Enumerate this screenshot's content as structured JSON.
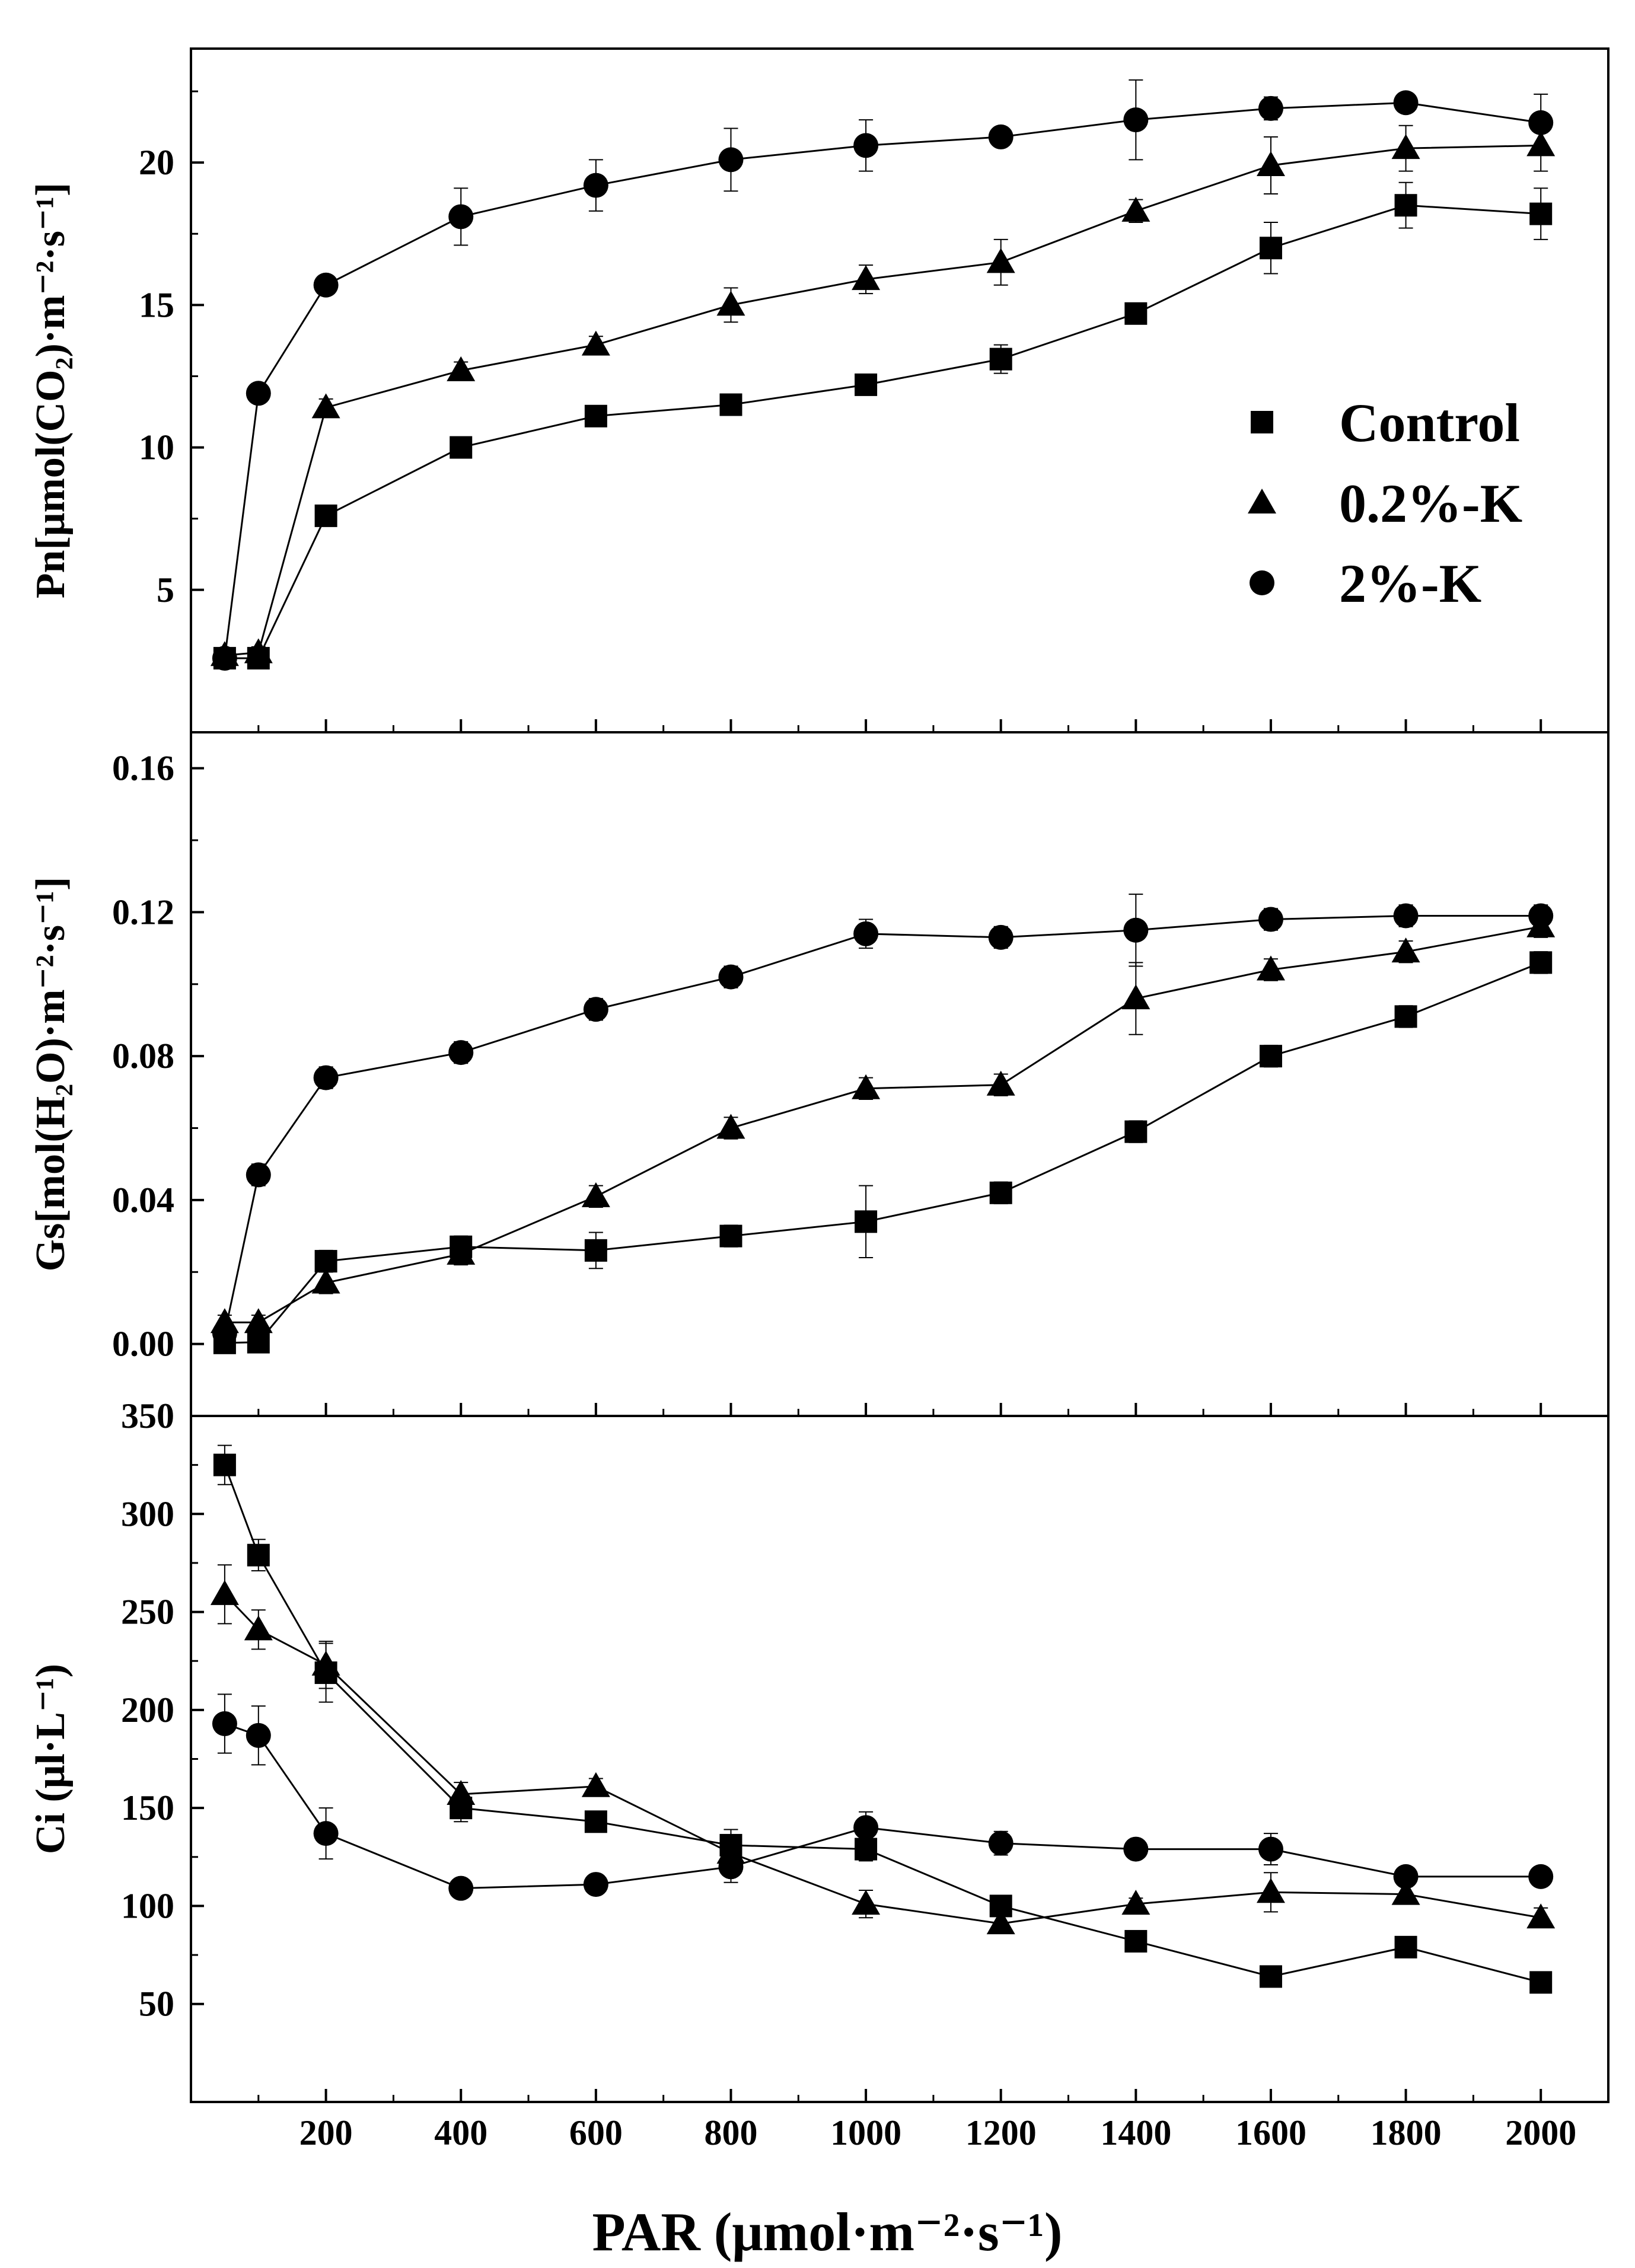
{
  "chart_data": {
    "type": "line",
    "xlabel": "PAR (μmol·m⁻²·s⁻¹)",
    "x": [
      50,
      100,
      200,
      400,
      600,
      800,
      1000,
      1200,
      1400,
      1600,
      1800,
      2000
    ],
    "xlim": [
      0,
      2100
    ],
    "xticks": [
      200,
      400,
      600,
      800,
      1000,
      1200,
      1400,
      1600,
      1800,
      2000
    ],
    "legend": {
      "placement": "right",
      "entries": [
        {
          "name": "Control",
          "marker": "square"
        },
        {
          "name": "0.2%-K",
          "marker": "triangle"
        },
        {
          "name": "2%-K",
          "marker": "circle"
        }
      ]
    },
    "panels": [
      {
        "id": "pn",
        "ylabel": "Pn[μmol(CO₂)·m⁻²·s⁻¹]",
        "ylim": [
          0,
          24
        ],
        "yticks": [
          5,
          10,
          15,
          20
        ],
        "tick_decimals": 0,
        "series": [
          {
            "name": "Control",
            "marker": "square",
            "values": [
              2.6,
              2.6,
              7.6,
              10.0,
              11.1,
              11.5,
              12.2,
              13.1,
              14.7,
              17.0,
              18.5,
              18.2
            ],
            "errors": [
              0.2,
              0.2,
              0.3,
              0.2,
              0.2,
              0.3,
              0.2,
              0.5,
              0.3,
              0.9,
              0.8,
              0.9
            ]
          },
          {
            "name": "0.2%-K",
            "marker": "triangle",
            "values": [
              2.7,
              2.8,
              11.4,
              12.7,
              13.6,
              15.0,
              15.9,
              16.5,
              18.3,
              19.9,
              20.5,
              20.6
            ],
            "errors": [
              0.2,
              0.2,
              0.3,
              0.3,
              0.3,
              0.6,
              0.5,
              0.8,
              0.4,
              1.0,
              0.8,
              0.9
            ]
          },
          {
            "name": "2%-K",
            "marker": "circle",
            "values": [
              2.6,
              11.9,
              15.7,
              18.1,
              19.2,
              20.1,
              20.6,
              20.9,
              21.5,
              21.9,
              22.1,
              21.4
            ],
            "errors": [
              0.2,
              0.3,
              0.3,
              1.0,
              0.9,
              1.1,
              0.9,
              0.3,
              1.4,
              0.4,
              0.3,
              1.0
            ]
          }
        ]
      },
      {
        "id": "gs",
        "ylabel": "Gs[mol(H₂O)·m⁻²·s⁻¹]",
        "ylim": [
          -0.02,
          0.17
        ],
        "yticks": [
          0.0,
          0.04,
          0.08,
          0.12,
          0.16
        ],
        "tick_decimals": 2,
        "series": [
          {
            "name": "Control",
            "marker": "square",
            "values": [
              0.0003,
              0.0005,
              0.023,
              0.027,
              0.026,
              0.03,
              0.034,
              0.042,
              0.059,
              0.08,
              0.091,
              0.106
            ],
            "errors": [
              0.002,
              0.002,
              0.003,
              0.003,
              0.005,
              0.003,
              0.01,
              0.003,
              0.003,
              0.003,
              0.003,
              0.003
            ]
          },
          {
            "name": "0.2%-K",
            "marker": "triangle",
            "values": [
              0.006,
              0.006,
              0.017,
              0.025,
              0.041,
              0.06,
              0.071,
              0.072,
              0.096,
              0.104,
              0.109,
              0.116
            ],
            "errors": [
              0.002,
              0.002,
              0.003,
              0.003,
              0.003,
              0.003,
              0.003,
              0.003,
              0.01,
              0.003,
              0.003,
              0.003
            ]
          },
          {
            "name": "2%-K",
            "marker": "circle",
            "values": [
              0.003,
              0.047,
              0.074,
              0.081,
              0.093,
              0.102,
              0.114,
              0.113,
              0.115,
              0.118,
              0.119,
              0.119
            ],
            "errors": [
              0.002,
              0.003,
              0.003,
              0.003,
              0.003,
              0.003,
              0.004,
              0.003,
              0.01,
              0.003,
              0.003,
              0.003
            ]
          }
        ]
      },
      {
        "id": "ci",
        "ylabel": "Ci (μl·L⁻¹)",
        "ylim": [
          0,
          350
        ],
        "yticks": [
          50,
          100,
          150,
          200,
          250,
          300,
          350
        ],
        "tick_decimals": 0,
        "series": [
          {
            "name": "Control",
            "marker": "square",
            "values": [
              325,
              279,
              219,
              150,
              143,
              131,
              129,
              100,
              82,
              64,
              79,
              61
            ],
            "errors": [
              10,
              8,
              15,
              7,
              4,
              8,
              6,
              5,
              4,
              3,
              4,
              3
            ]
          },
          {
            "name": "0.2%-K",
            "marker": "triangle",
            "values": [
              259,
              241,
              223,
              157,
              161,
              127,
              101,
              91,
              101,
              107,
              106,
              94
            ],
            "errors": [
              15,
              10,
              12,
              6,
              4,
              6,
              7,
              4,
              3,
              10,
              4,
              5
            ]
          },
          {
            "name": "2%-K",
            "marker": "circle",
            "values": [
              193,
              187,
              137,
              109,
              111,
              120,
              140,
              132,
              129,
              129,
              115,
              115
            ],
            "errors": [
              15,
              15,
              13,
              4,
              4,
              8,
              8,
              6,
              4,
              8,
              4,
              4
            ]
          }
        ]
      }
    ]
  }
}
